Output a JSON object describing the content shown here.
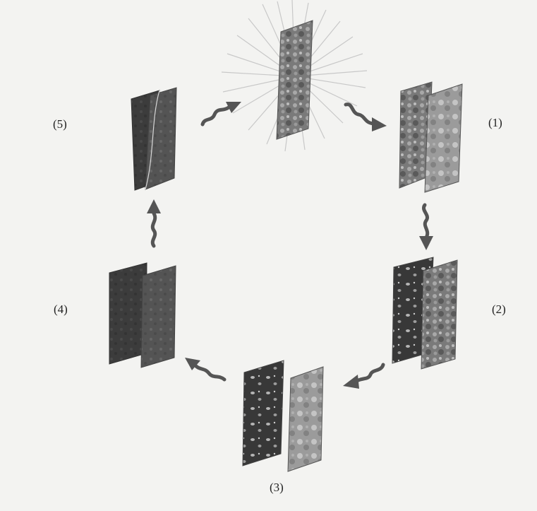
{
  "diagram": {
    "stages": [
      {
        "label": "(1)"
      },
      {
        "label": "(2)"
      },
      {
        "label": "(3)"
      },
      {
        "label": "(4)"
      },
      {
        "label": "(5)"
      }
    ]
  },
  "colors": {
    "panel_dark": "#3a3a3a",
    "panel_mid": "#6d6d6d",
    "panel_light": "#9a9a9a",
    "arrow": "#555555",
    "rays": "#c8c8c8"
  }
}
